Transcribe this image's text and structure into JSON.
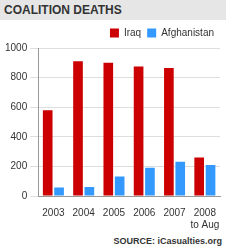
{
  "chart_data": {
    "type": "bar",
    "title": "COALITION DEATHS",
    "categories": [
      "2003",
      "2004",
      "2005",
      "2006",
      "2007",
      [
        "2008",
        "to Aug"
      ]
    ],
    "series": [
      {
        "name": "Iraq",
        "color": "#cc0000",
        "values": [
          580,
          910,
          900,
          875,
          865,
          260
        ]
      },
      {
        "name": "Afghanistan",
        "color": "#3399ff",
        "values": [
          58,
          60,
          131,
          191,
          232,
          210
        ]
      }
    ],
    "ylim": [
      0,
      1000
    ],
    "yticks": [
      0,
      200,
      400,
      600,
      800,
      1000
    ],
    "grid": true,
    "legend": "upper right",
    "source": "SOURCE: iCasualties.org"
  }
}
